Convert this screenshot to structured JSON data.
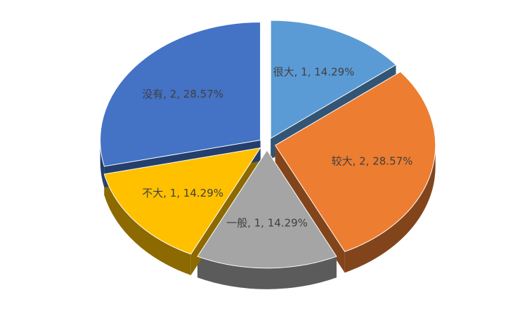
{
  "chart_data": {
    "type": "pie",
    "values": [
      1,
      2,
      1,
      1,
      2
    ],
    "value_labels": [
      "很大, 1, 14.29%",
      "较大, 2, 28.57%",
      "一般, 1, 14.29%",
      "不大, 1, 14.29%",
      "没有, 2, 28.57%"
    ],
    "colors": [
      "#5b9bd5",
      "#ed7d31",
      "#a5a5a5",
      "#ffc000",
      "#4472c4"
    ]
  }
}
